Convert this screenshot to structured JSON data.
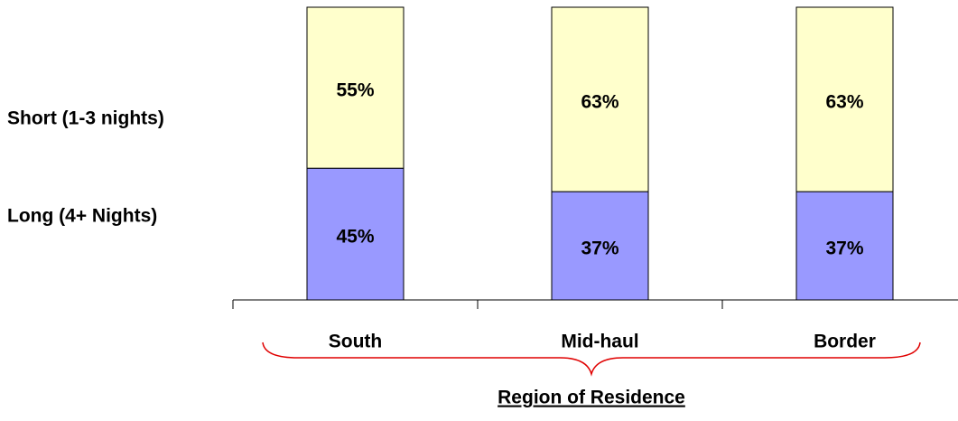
{
  "chart_data": {
    "type": "stacked_bar",
    "x_label": "Region of Residence",
    "categories": [
      "South",
      "Mid-haul",
      "Border"
    ],
    "series": [
      {
        "name": "Long (4+ Nights)",
        "color": "#9999ff",
        "values": [
          45,
          37,
          37
        ],
        "value_labels": [
          "45%",
          "37%",
          "37%"
        ]
      },
      {
        "name": "Short (1-3 nights)",
        "color": "#ffffcc",
        "values": [
          55,
          63,
          63
        ],
        "value_labels": [
          "55%",
          "63%",
          "63%"
        ]
      }
    ],
    "ylim": [
      0,
      100
    ],
    "legend": "left"
  }
}
